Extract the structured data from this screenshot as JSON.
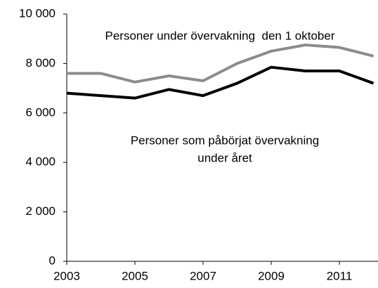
{
  "chart_data": {
    "type": "line",
    "x": [
      2003,
      2004,
      2005,
      2006,
      2007,
      2008,
      2009,
      2010,
      2011,
      2012
    ],
    "series": [
      {
        "color": "#8c8c8c",
        "values": [
          7600,
          7600,
          7250,
          7500,
          7300,
          8000,
          8500,
          8750,
          8650,
          8300
        ]
      },
      {
        "color": "#000000",
        "values": [
          6800,
          6700,
          6600,
          6950,
          6700,
          7200,
          7850,
          7700,
          7700,
          7200
        ]
      }
    ],
    "annotations": [
      "Personer under övervakning  den 1 oktober",
      "Personer som påbörjat övervakning",
      "under året"
    ],
    "xlim": [
      2003,
      2012
    ],
    "xticks": [
      2003,
      2005,
      2007,
      2009,
      2011
    ],
    "ylim": [
      0,
      10000
    ],
    "yticks": [
      0,
      {
        "value": 2000,
        "label": "2 000"
      },
      {
        "value": 4000,
        "label": "4 000"
      },
      {
        "value": 6000,
        "label": "6 000"
      },
      {
        "value": 8000,
        "label": "8 000"
      },
      {
        "value": 10000,
        "label": "10 000"
      }
    ],
    "grid": false
  }
}
